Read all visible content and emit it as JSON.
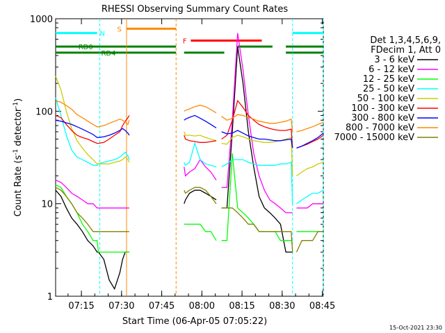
{
  "chart_data": {
    "type": "line",
    "title": "RHESSI Observing Summary Count Rates",
    "xlabel": "Start Time (06-Apr-05 07:05:22)",
    "ylabel_main": "Count Rate (s",
    "ylabel_sup1": "-1",
    "ylabel_mid": " detector",
    "ylabel_sup2": "-1",
    "ylabel_end": ")",
    "x_unit": "minutes since 07:05:22",
    "xlim": [
      0,
      100
    ],
    "ylim": [
      1,
      1000
    ],
    "y_scale": "log",
    "x_ticks": [
      {
        "label": "07:15",
        "value": 9.63
      },
      {
        "label": "07:30",
        "value": 24.63
      },
      {
        "label": "07:45",
        "value": 39.63
      },
      {
        "label": "08:00",
        "value": 54.63
      },
      {
        "label": "08:15",
        "value": 69.63
      },
      {
        "label": "08:30",
        "value": 84.63
      },
      {
        "label": "08:45",
        "value": 99.63
      }
    ],
    "y_ticks": [
      {
        "label": "1",
        "value": 1
      },
      {
        "label": "10",
        "value": 10
      },
      {
        "label": "100",
        "value": 100
      },
      {
        "label": "1000",
        "value": 1000
      }
    ],
    "legend_header": [
      "Det 1,3,4,5,6,9,",
      "FDecim 1, Att 0"
    ],
    "legend_placement": "right",
    "timestamp": "15-Oct-2021 23:30",
    "x": [
      0,
      2,
      4,
      6,
      8,
      10,
      12,
      14,
      15.5,
      16,
      18,
      20,
      22,
      24,
      25,
      26,
      27,
      27.5,
      28,
      30,
      32,
      33,
      34,
      40,
      45,
      48,
      48.5,
      50,
      52,
      54,
      56,
      58,
      60,
      62,
      64,
      66,
      68,
      70,
      72,
      74,
      76,
      78,
      80,
      82,
      84,
      86,
      88,
      88.5,
      90,
      92,
      94,
      96,
      98,
      100
    ],
    "gap_after_index": [
      17,
      32,
      47
    ],
    "series": [
      {
        "name": "3 - 6 keV",
        "color": "#000000",
        "values": [
          14,
          12,
          9,
          7,
          6,
          5,
          4,
          3.5,
          3,
          3,
          2.5,
          1.5,
          1.2,
          1.8,
          2.5,
          3,
          3,
          3,
          null,
          null,
          null,
          null,
          null,
          null,
          null,
          10,
          11,
          13,
          14,
          14,
          13,
          12,
          11,
          9,
          9,
          60,
          500,
          200,
          60,
          25,
          12,
          9,
          8,
          7,
          6,
          3,
          3,
          3,
          null,
          null,
          null,
          null,
          null,
          null
        ]
      },
      {
        "name": "6 - 12 keV",
        "color": "#ff00ff",
        "values": [
          18,
          17,
          15,
          13,
          12,
          11,
          10,
          10,
          9,
          9,
          9,
          9,
          9,
          9,
          9,
          9,
          9,
          9,
          null,
          null,
          null,
          null,
          null,
          null,
          null,
          25,
          20,
          22,
          24,
          30,
          25,
          22,
          18,
          15,
          15,
          80,
          700,
          280,
          90,
          35,
          20,
          14,
          11,
          10,
          9,
          8,
          8,
          8,
          9,
          9,
          9,
          10,
          10,
          10
        ]
      },
      {
        "name": "12 - 25 keV",
        "color": "#00ff00",
        "values": [
          16,
          15,
          12,
          10,
          8,
          6,
          5,
          4,
          4,
          3,
          3,
          3,
          3,
          3,
          3,
          3,
          3,
          3,
          null,
          null,
          null,
          null,
          null,
          null,
          null,
          6,
          6,
          6,
          6,
          6,
          5,
          5,
          4,
          4,
          4,
          35,
          9,
          8,
          7,
          6,
          5,
          5,
          5,
          5,
          4,
          4,
          4,
          4,
          5,
          5,
          5,
          5,
          5,
          5
        ]
      },
      {
        "name": "25 - 50 keV",
        "color": "#00ffff",
        "values": [
          140,
          90,
          55,
          38,
          32,
          30,
          28,
          26,
          26,
          27,
          28,
          29,
          30,
          32,
          34,
          36,
          33,
          30,
          null,
          null,
          null,
          null,
          null,
          null,
          null,
          28,
          26,
          28,
          45,
          30,
          27,
          26,
          25,
          25,
          27,
          30,
          30,
          30,
          28,
          27,
          26,
          26,
          26,
          26,
          27,
          27,
          28,
          10,
          10,
          11,
          12,
          13,
          13,
          14
        ]
      },
      {
        "name": "50 - 100 keV",
        "color": "#cccc00",
        "values": [
          240,
          170,
          100,
          65,
          48,
          40,
          34,
          30,
          27,
          27,
          27,
          27,
          28,
          29,
          30,
          32,
          30,
          28,
          null,
          null,
          null,
          null,
          null,
          null,
          null,
          60,
          55,
          55,
          54,
          55,
          52,
          50,
          48,
          45,
          44,
          52,
          55,
          53,
          50,
          48,
          47,
          46,
          46,
          47,
          48,
          50,
          52,
          20,
          20,
          22,
          24,
          25,
          27,
          28
        ]
      },
      {
        "name": "100 - 300 keV",
        "color": "#ff0000",
        "values": [
          90,
          85,
          72,
          62,
          55,
          52,
          50,
          47,
          45,
          45,
          46,
          50,
          55,
          60,
          70,
          78,
          85,
          90,
          null,
          null,
          null,
          null,
          null,
          null,
          null,
          55,
          50,
          48,
          47,
          46,
          46,
          47,
          48,
          50,
          55,
          80,
          130,
          110,
          90,
          80,
          72,
          68,
          65,
          63,
          62,
          62,
          64,
          40,
          40,
          42,
          44,
          47,
          50,
          55
        ]
      },
      {
        "name": "300 - 800 keV",
        "color": "#0000ff",
        "values": [
          80,
          78,
          75,
          72,
          68,
          64,
          60,
          56,
          52,
          52,
          53,
          55,
          58,
          62,
          65,
          62,
          58,
          55,
          null,
          null,
          null,
          null,
          null,
          null,
          null,
          80,
          82,
          86,
          90,
          84,
          78,
          72,
          66,
          60,
          57,
          58,
          62,
          58,
          54,
          52,
          50,
          50,
          49,
          48,
          48,
          49,
          50,
          40,
          40,
          42,
          45,
          48,
          52,
          58
        ]
      },
      {
        "name": "800 - 7000 keV",
        "color": "#ff8800",
        "values": [
          130,
          125,
          115,
          105,
          92,
          85,
          78,
          72,
          68,
          68,
          70,
          74,
          78,
          82,
          80,
          76,
          72,
          80,
          null,
          null,
          null,
          null,
          null,
          null,
          null,
          100,
          102,
          106,
          112,
          116,
          112,
          104,
          96,
          88,
          80,
          84,
          92,
          90,
          86,
          82,
          78,
          76,
          74,
          74,
          76,
          78,
          82,
          60,
          60,
          62,
          65,
          68,
          72,
          76
        ]
      },
      {
        "name": "7000 - 15000 keV",
        "color": "#808000",
        "values": [
          15,
          14,
          12,
          10,
          8,
          7,
          6,
          5,
          5,
          5,
          5,
          5,
          5,
          5,
          5,
          5,
          5,
          5,
          null,
          null,
          null,
          null,
          null,
          null,
          null,
          14,
          13,
          14,
          15,
          15,
          14,
          12,
          10,
          9,
          9,
          9,
          8,
          7,
          6,
          6,
          5,
          5,
          5,
          5,
          5,
          5,
          5,
          3,
          3,
          4,
          4,
          4,
          5,
          5
        ]
      }
    ],
    "state_bars": [
      {
        "label": "N",
        "color": "#00ffff",
        "y": 700,
        "segments": [
          [
            0,
            15.5
          ],
          [
            88.5,
            100
          ]
        ],
        "label_at": 16.5
      },
      {
        "label": "S",
        "color": "#ff8800",
        "y": 780,
        "segments": [
          [
            26.5,
            45
          ]
        ],
        "label_at": 23
      },
      {
        "label": "F",
        "color": "#ff0000",
        "y": 580,
        "segments": [
          [
            50.5,
            77
          ]
        ],
        "label_at": 47.5
      },
      {
        "label": "RD0",
        "color": "#008000",
        "y": 500,
        "segments": [
          [
            0,
            45
          ],
          [
            68,
            81
          ],
          [
            86,
            100
          ]
        ],
        "label_at": 8.5
      },
      {
        "label": "RD4",
        "color": "#008000",
        "y": 430,
        "segments": [
          [
            0,
            45
          ],
          [
            48,
            63
          ],
          [
            86,
            100
          ]
        ],
        "label_at": 17
      }
    ],
    "vlines": [
      {
        "color": "#00ffff",
        "x": 16.5,
        "style": "dashed"
      },
      {
        "color": "#ff8800",
        "x": 26.5,
        "style": "solid"
      },
      {
        "color": "#ff8800",
        "x": 45,
        "style": "dashed"
      },
      {
        "color": "#00ffff",
        "x": 88.5,
        "style": "dashed"
      },
      {
        "color": "#00ffff",
        "x": 100,
        "style": "dashed"
      }
    ]
  }
}
